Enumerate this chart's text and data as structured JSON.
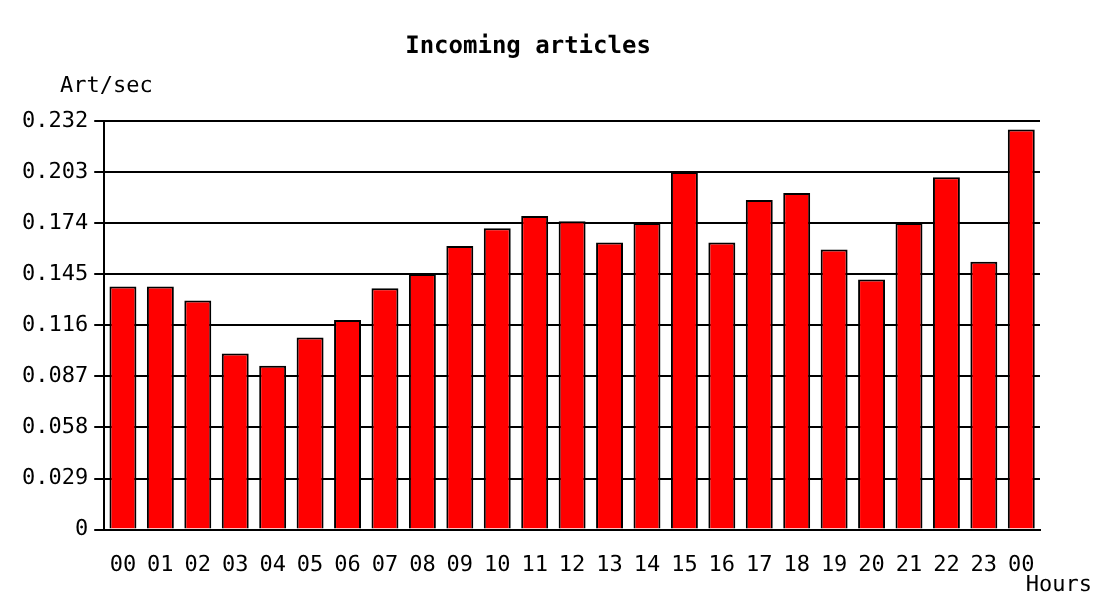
{
  "chart_data": {
    "type": "bar",
    "title": "Incoming articles",
    "ylabel": "Art/sec",
    "xlabel": "Hours",
    "categories": [
      "00",
      "01",
      "02",
      "03",
      "04",
      "05",
      "06",
      "07",
      "08",
      "09",
      "10",
      "11",
      "12",
      "13",
      "14",
      "15",
      "16",
      "17",
      "18",
      "19",
      "20",
      "21",
      "22",
      "23",
      "00"
    ],
    "values": [
      0.138,
      0.138,
      0.13,
      0.1,
      0.093,
      0.109,
      0.119,
      0.137,
      0.145,
      0.161,
      0.171,
      0.178,
      0.175,
      0.163,
      0.174,
      0.203,
      0.163,
      0.187,
      0.191,
      0.159,
      0.142,
      0.174,
      0.2,
      0.152,
      0.227
    ],
    "color": "#ff0000",
    "ylim": [
      0,
      0.232
    ],
    "yticks": [
      0,
      0.029,
      0.058,
      0.087,
      0.116,
      0.145,
      0.174,
      0.203,
      0.232
    ],
    "grid": "y",
    "legend": false
  }
}
